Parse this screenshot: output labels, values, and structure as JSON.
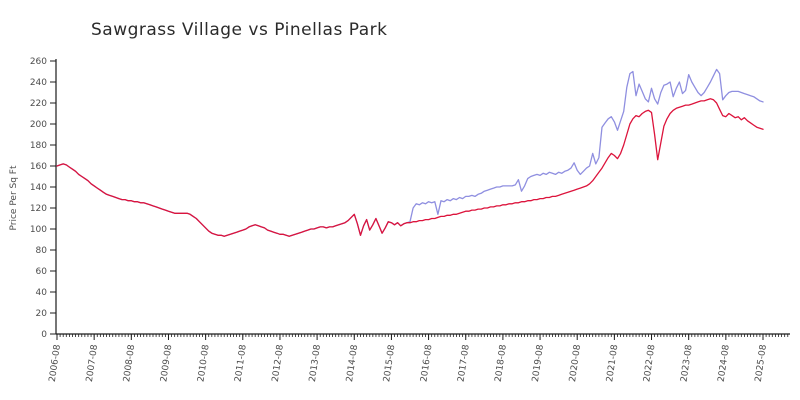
{
  "chart_data": {
    "type": "line",
    "title": "Sawgrass Village vs Pinellas Park",
    "ylabel": "Price Per Sq Ft",
    "xlabel": "",
    "x_start": "2006-08",
    "x_step_months": 1,
    "x_tick_labels": [
      "2006-08",
      "2007-08",
      "2008-08",
      "2009-08",
      "2010-08",
      "2011-08",
      "2012-08",
      "2013-08",
      "2014-08",
      "2015-08",
      "2016-08",
      "2017-08",
      "2018-08",
      "2019-08",
      "2020-08",
      "2021-08",
      "2022-08",
      "2023-08",
      "2024-08",
      "2025-08"
    ],
    "y_ticks": [
      0,
      20,
      40,
      60,
      80,
      100,
      120,
      140,
      160,
      180,
      200,
      220,
      240,
      260
    ],
    "ylim": [
      0,
      260
    ],
    "grid": false,
    "legend": "none",
    "axis_color": "#1c1c1c",
    "tick_label_color": "#4d4d4d",
    "title_color": "#2b2b2b",
    "series": [
      {
        "name": "blue",
        "color": "#8f8fe0",
        "values": [
          160,
          161,
          162,
          161,
          159,
          157,
          155,
          152,
          150,
          148,
          146,
          143,
          141,
          139,
          137,
          135,
          133,
          132,
          131,
          130,
          129,
          128,
          128,
          127,
          127,
          126,
          126,
          125,
          125,
          124,
          123,
          122,
          121,
          120,
          119,
          118,
          117,
          116,
          115,
          115,
          115,
          115,
          115,
          114,
          112,
          110,
          107,
          104,
          101,
          98,
          96,
          95,
          94,
          94,
          93,
          94,
          95,
          96,
          97,
          98,
          99,
          100,
          102,
          103,
          104,
          103,
          102,
          101,
          99,
          98,
          97,
          96,
          95,
          95,
          94,
          93,
          94,
          95,
          96,
          97,
          98,
          99,
          100,
          100,
          101,
          102,
          102,
          101,
          102,
          102,
          103,
          104,
          105,
          106,
          108,
          111,
          114,
          105,
          94,
          103,
          109,
          99,
          104,
          110,
          103,
          96,
          101,
          107,
          106,
          104,
          106,
          103,
          105,
          106,
          107,
          120,
          124,
          123,
          125,
          124,
          126,
          125,
          126,
          114,
          127,
          126,
          128,
          127,
          129,
          128,
          130,
          129,
          131,
          131,
          132,
          131,
          133,
          134,
          136,
          137,
          138,
          139,
          140,
          140,
          141,
          141,
          141,
          141,
          142,
          147,
          136,
          141,
          148,
          150,
          151,
          152,
          151,
          153,
          152,
          154,
          153,
          152,
          154,
          153,
          155,
          156,
          158,
          163,
          156,
          152,
          155,
          158,
          160,
          172,
          162,
          168,
          197,
          201,
          205,
          207,
          202,
          194,
          203,
          212,
          235,
          248,
          250,
          227,
          238,
          231,
          224,
          221,
          234,
          224,
          219,
          230,
          237,
          238,
          240,
          226,
          234,
          240,
          229,
          232,
          247,
          240,
          235,
          230,
          227,
          230,
          235,
          240,
          246,
          252,
          248,
          223,
          227,
          230,
          231,
          231,
          231,
          230,
          229,
          228,
          227,
          226,
          224,
          222,
          221
        ]
      },
      {
        "name": "red",
        "color": "#dc143c",
        "values": [
          160,
          161,
          162,
          161,
          159,
          157,
          155,
          152,
          150,
          148,
          146,
          143,
          141,
          139,
          137,
          135,
          133,
          132,
          131,
          130,
          129,
          128,
          128,
          127,
          127,
          126,
          126,
          125,
          125,
          124,
          123,
          122,
          121,
          120,
          119,
          118,
          117,
          116,
          115,
          115,
          115,
          115,
          115,
          114,
          112,
          110,
          107,
          104,
          101,
          98,
          96,
          95,
          94,
          94,
          93,
          94,
          95,
          96,
          97,
          98,
          99,
          100,
          102,
          103,
          104,
          103,
          102,
          101,
          99,
          98,
          97,
          96,
          95,
          95,
          94,
          93,
          94,
          95,
          96,
          97,
          98,
          99,
          100,
          100,
          101,
          102,
          102,
          101,
          102,
          102,
          103,
          104,
          105,
          106,
          108,
          111,
          114,
          105,
          94,
          103,
          109,
          99,
          104,
          110,
          103,
          96,
          101,
          107,
          106,
          104,
          106,
          103,
          105,
          106,
          106,
          107,
          107,
          108,
          108,
          109,
          109,
          110,
          110,
          111,
          112,
          112,
          113,
          113,
          114,
          114,
          115,
          116,
          117,
          117,
          118,
          118,
          119,
          119,
          120,
          120,
          121,
          121,
          122,
          122,
          123,
          123,
          124,
          124,
          125,
          125,
          126,
          126,
          127,
          127,
          128,
          128,
          129,
          129,
          130,
          130,
          131,
          131,
          132,
          133,
          134,
          135,
          136,
          137,
          138,
          139,
          140,
          141,
          143,
          146,
          150,
          154,
          158,
          163,
          168,
          172,
          170,
          167,
          172,
          180,
          190,
          200,
          205,
          208,
          207,
          210,
          212,
          213,
          211,
          190,
          166,
          182,
          198,
          205,
          210,
          213,
          215,
          216,
          217,
          218,
          218,
          219,
          220,
          221,
          222,
          222,
          223,
          224,
          223,
          220,
          214,
          208,
          207,
          210,
          208,
          206,
          207,
          204,
          206,
          203,
          201,
          199,
          197,
          196,
          195
        ]
      }
    ]
  }
}
